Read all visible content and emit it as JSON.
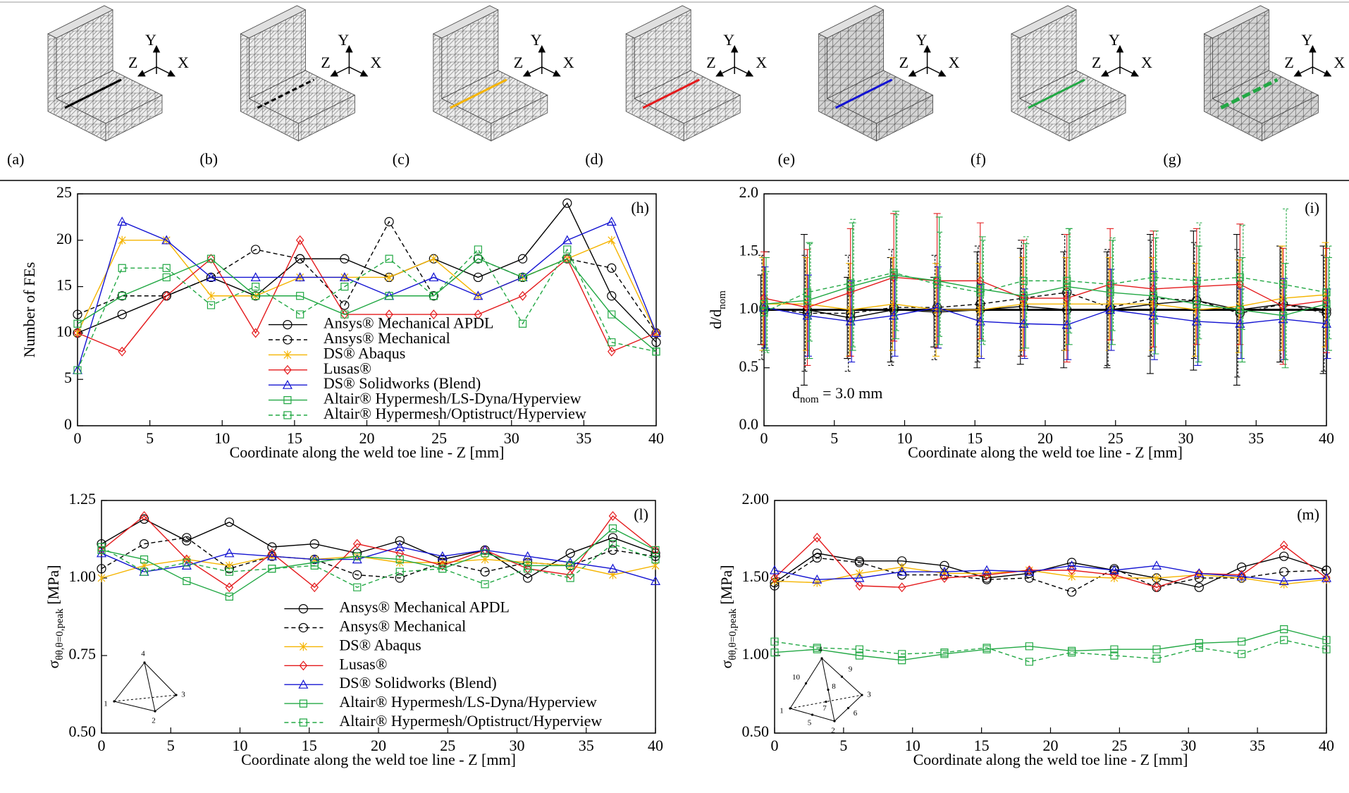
{
  "mesh_figure": {
    "panels": [
      {
        "label": "(a)",
        "line_color": "#000000",
        "dashed": false
      },
      {
        "label": "(b)",
        "line_color": "#000000",
        "dashed": true
      },
      {
        "label": "(c)",
        "line_color": "#f5b400",
        "dashed": false
      },
      {
        "label": "(d)",
        "line_color": "#e41a1c",
        "dashed": false
      },
      {
        "label": "(e)",
        "line_color": "#1414d2",
        "dashed": false
      },
      {
        "label": "(f)",
        "line_color": "#22a844",
        "dashed": false
      },
      {
        "label": "(g)",
        "line_color": "#22a844",
        "dashed": true
      }
    ],
    "axis_labels": [
      "Y",
      "Z",
      "X"
    ]
  },
  "chart_data": [
    {
      "type": "line",
      "panel_label": "(h)",
      "xlabel": "Coordinate along the weld toe line - Z [mm]",
      "ylabel": "Number of FEs",
      "x": [
        0,
        3.08,
        6.15,
        9.23,
        12.31,
        15.38,
        18.46,
        21.54,
        24.62,
        27.69,
        30.77,
        33.85,
        36.92,
        40
      ],
      "xlim": [
        0,
        40
      ],
      "xticks": [
        0,
        5,
        10,
        15,
        20,
        25,
        30,
        35,
        40
      ],
      "ylim": [
        0,
        25
      ],
      "yticks": [
        0,
        5,
        10,
        15,
        20,
        25
      ],
      "legend": "lower center",
      "series": [
        {
          "name": "Ansys® Mechanical APDL",
          "color": "#000000",
          "marker": "circle",
          "dashed": false,
          "values": [
            10,
            12,
            14,
            16,
            14,
            18,
            18,
            16,
            18,
            16,
            18,
            24,
            14,
            9
          ]
        },
        {
          "name": "Ansys® Mechanical",
          "color": "#000000",
          "marker": "circle",
          "dashed": true,
          "values": [
            12,
            14,
            14,
            16,
            19,
            18,
            13,
            22,
            14,
            18,
            16,
            18,
            17,
            10
          ]
        },
        {
          "name": "DS® Abaqus",
          "color": "#f5b400",
          "marker": "x",
          "dashed": false,
          "values": [
            10,
            20,
            20,
            14,
            14,
            16,
            16,
            16,
            18,
            14,
            16,
            18,
            20,
            10
          ]
        },
        {
          "name": "Lusas®",
          "color": "#e41a1c",
          "marker": "diamond",
          "dashed": false,
          "values": [
            10,
            8,
            14,
            18,
            10,
            20,
            12,
            12,
            12,
            12,
            14,
            18,
            8,
            10
          ]
        },
        {
          "name": "DS® Solidworks (Blend)",
          "color": "#1414d2",
          "marker": "triangle",
          "dashed": false,
          "values": [
            6,
            22,
            20,
            16,
            16,
            16,
            16,
            14,
            16,
            14,
            16,
            20,
            22,
            10
          ]
        },
        {
          "name": "Altair® Hypermesh/LS-Dyna/Hyperview",
          "color": "#22a844",
          "marker": "square",
          "dashed": false,
          "values": [
            11,
            14,
            16,
            18,
            14,
            14,
            12,
            14,
            14,
            18,
            16,
            18,
            12,
            8
          ]
        },
        {
          "name": "Altair® Hypermesh/Optistruct/Hyperview",
          "color": "#22a844",
          "marker": "square",
          "dashed": true,
          "values": [
            6,
            17,
            17,
            13,
            15,
            12,
            15,
            18,
            14,
            19,
            11,
            19,
            9,
            8
          ]
        }
      ]
    },
    {
      "type": "errorbar",
      "panel_label": "(i)",
      "xlabel": "Coordinate along the weld toe line - Z [mm]",
      "ylabel": {
        "main": "d/d",
        "sub": "nom"
      },
      "annotation": {
        "main": "d",
        "sub": "nom",
        "rest": " = 3.0 mm"
      },
      "reference_line": 1,
      "x": [
        0,
        3.08,
        6.15,
        9.23,
        12.31,
        15.38,
        18.46,
        21.54,
        24.62,
        27.69,
        30.77,
        33.85,
        36.92,
        40
      ],
      "xlim": [
        0,
        40
      ],
      "xticks": [
        0,
        5,
        10,
        15,
        20,
        25,
        30,
        35,
        40
      ],
      "ylim": [
        0,
        2
      ],
      "yticks": [
        {
          "value": 0,
          "label": "0.0"
        },
        0.5,
        {
          "value": 1,
          "label": "1.0"
        },
        1.5,
        {
          "value": 2,
          "label": "2.0"
        }
      ],
      "series": [
        {
          "color": "#000000",
          "marker": "circle",
          "dashed": false,
          "values": [
            1.0,
            1.0,
            0.93,
            1.0,
            0.98,
            1.0,
            1.03,
            1.0,
            1.0,
            1.05,
            1.08,
            1.0,
            1.05,
            1.0
          ],
          "errors": [
            0.3,
            0.65,
            0.35,
            0.45,
            0.3,
            0.5,
            0.5,
            0.5,
            0.5,
            0.6,
            0.6,
            0.65,
            0.5,
            0.55
          ]
        },
        {
          "color": "#000000",
          "marker": "circle",
          "dashed": true,
          "values": [
            1.02,
            0.97,
            0.97,
            1.02,
            1.02,
            1.05,
            1.1,
            1.15,
            1.02,
            1.1,
            1.08,
            0.97,
            1.05,
            0.97
          ],
          "errors": [
            0.45,
            0.5,
            0.5,
            0.5,
            0.45,
            0.5,
            0.5,
            0.5,
            0.5,
            0.5,
            0.5,
            0.55,
            0.5,
            0.5
          ]
        },
        {
          "color": "#f5b400",
          "marker": "x",
          "dashed": false,
          "values": [
            1.05,
            1.05,
            1.0,
            1.05,
            1.0,
            1.0,
            1.05,
            1.05,
            1.05,
            1.05,
            1.0,
            1.03,
            1.1,
            1.13
          ],
          "errors": [
            0.4,
            0.4,
            0.4,
            0.4,
            0.4,
            0.4,
            0.4,
            0.4,
            0.4,
            0.4,
            0.4,
            0.4,
            0.45,
            0.45
          ]
        },
        {
          "color": "#e41a1c",
          "marker": "diamond",
          "dashed": false,
          "values": [
            1.1,
            1.02,
            1.15,
            1.28,
            1.25,
            1.25,
            1.1,
            1.1,
            1.22,
            1.18,
            1.2,
            1.22,
            1.03,
            1.08
          ],
          "errors": [
            0.4,
            0.5,
            0.55,
            0.55,
            0.58,
            0.5,
            0.5,
            0.55,
            0.48,
            0.5,
            0.5,
            0.52,
            0.5,
            0.45
          ]
        },
        {
          "color": "#1414d2",
          "marker": "triangle",
          "dashed": false,
          "values": [
            1.02,
            0.95,
            0.9,
            0.95,
            1.02,
            0.9,
            0.88,
            0.87,
            1.0,
            0.95,
            0.9,
            0.88,
            0.92,
            0.88
          ],
          "errors": [
            0.35,
            0.35,
            0.35,
            0.35,
            0.35,
            0.32,
            0.3,
            0.3,
            0.35,
            0.38,
            0.38,
            0.3,
            0.35,
            0.3
          ]
        },
        {
          "color": "#22a844",
          "marker": "square",
          "dashed": false,
          "values": [
            1.05,
            1.08,
            1.2,
            1.3,
            1.25,
            1.18,
            1.12,
            1.2,
            1.15,
            1.12,
            1.05,
            1.0,
            0.95,
            1.05
          ],
          "errors": [
            0.4,
            0.5,
            0.55,
            0.55,
            0.55,
            0.45,
            0.45,
            0.5,
            0.45,
            0.5,
            0.5,
            0.45,
            0.45,
            0.4
          ]
        },
        {
          "color": "#22a844",
          "marker": "square",
          "dashed": true,
          "values": [
            0.98,
            1.15,
            1.23,
            1.32,
            1.22,
            1.15,
            1.25,
            1.25,
            1.22,
            1.28,
            1.25,
            1.28,
            1.22,
            1.15
          ],
          "errors": [
            0.35,
            0.42,
            0.55,
            0.5,
            0.45,
            0.45,
            0.38,
            0.45,
            0.4,
            0.4,
            0.5,
            0.45,
            0.65,
            0.4
          ]
        }
      ]
    },
    {
      "type": "line",
      "panel_label": "(l)",
      "xlabel": "Coordinate along the weld toe line - Z [mm]",
      "ylabel": {
        "main": "σ",
        "sub": "θθ,θ=0,peak",
        "rest": " [MPa]"
      },
      "inset_labels": [
        "1",
        "2",
        "3",
        "4"
      ],
      "x": [
        0,
        3.08,
        6.15,
        9.23,
        12.31,
        15.38,
        18.46,
        21.54,
        24.62,
        27.69,
        30.77,
        33.85,
        36.92,
        40
      ],
      "xlim": [
        0,
        40
      ],
      "xticks": [
        0,
        5,
        10,
        15,
        20,
        25,
        30,
        35,
        40
      ],
      "ylim": [
        0.5,
        1.25
      ],
      "yticks": [
        {
          "value": 0.5,
          "label": "0.50"
        },
        0.75,
        {
          "value": 1,
          "label": "1.00"
        },
        1.25
      ],
      "legend": "lower center",
      "series": [
        {
          "name": "Ansys® Mechanical APDL",
          "color": "#000000",
          "marker": "circle",
          "dashed": false,
          "values": [
            1.11,
            1.19,
            1.12,
            1.18,
            1.1,
            1.11,
            1.08,
            1.12,
            1.06,
            1.09,
            1.0,
            1.08,
            1.13,
            1.08
          ]
        },
        {
          "name": "Ansys® Mechanical",
          "color": "#000000",
          "marker": "circle",
          "dashed": true,
          "values": [
            1.03,
            1.11,
            1.13,
            1.03,
            1.07,
            1.06,
            1.01,
            1.0,
            1.05,
            1.02,
            1.05,
            1.04,
            1.09,
            1.07
          ]
        },
        {
          "name": "DS® Abaqus",
          "color": "#f5b400",
          "marker": "x",
          "dashed": false,
          "values": [
            1.0,
            1.04,
            1.06,
            1.04,
            1.07,
            1.06,
            1.07,
            1.05,
            1.05,
            1.06,
            1.05,
            1.04,
            1.01,
            1.04
          ]
        },
        {
          "name": "Lusas®",
          "color": "#e41a1c",
          "marker": "diamond",
          "dashed": false,
          "values": [
            1.09,
            1.2,
            1.06,
            0.97,
            1.08,
            0.97,
            1.11,
            1.08,
            1.04,
            1.09,
            1.03,
            1.01,
            1.2,
            1.09
          ]
        },
        {
          "name": "DS® Solidworks (Blend)",
          "color": "#1414d2",
          "marker": "triangle",
          "dashed": false,
          "values": [
            1.08,
            1.02,
            1.04,
            1.08,
            1.07,
            1.06,
            1.06,
            1.1,
            1.07,
            1.09,
            1.07,
            1.05,
            1.03,
            0.99
          ]
        },
        {
          "name": "Altair® Hypermesh/LS-Dyna/Hyperview",
          "color": "#22a844",
          "marker": "square",
          "dashed": false,
          "values": [
            1.09,
            1.06,
            0.99,
            0.94,
            1.03,
            1.05,
            1.07,
            1.06,
            1.03,
            1.08,
            1.04,
            1.04,
            1.16,
            1.09
          ]
        },
        {
          "name": "Altair® Hypermesh/Optistruct/Hyperview",
          "color": "#22a844",
          "marker": "square",
          "dashed": true,
          "values": [
            1.1,
            1.02,
            1.05,
            1.02,
            1.03,
            1.04,
            0.97,
            1.02,
            1.03,
            0.98,
            1.03,
            1.0,
            1.11,
            1.06
          ]
        }
      ]
    },
    {
      "type": "line",
      "panel_label": "(m)",
      "xlabel": "Coordinate along the weld toe line - Z [mm]",
      "ylabel": {
        "main": "σ",
        "sub": "θθ,θ=0,peak",
        "rest": " [MPa]"
      },
      "inset_labels": [
        "1",
        "2",
        "3",
        "4",
        "5",
        "6",
        "7",
        "8",
        "9",
        "10"
      ],
      "x": [
        0,
        3.08,
        6.15,
        9.23,
        12.31,
        15.38,
        18.46,
        21.54,
        24.62,
        27.69,
        30.77,
        33.85,
        36.92,
        40
      ],
      "xlim": [
        0,
        40
      ],
      "xticks": [
        0,
        5,
        10,
        15,
        20,
        25,
        30,
        35,
        40
      ],
      "ylim": [
        0.5,
        2
      ],
      "yticks": [
        {
          "value": 0.5,
          "label": "0.50"
        },
        {
          "value": 1,
          "label": "1.00"
        },
        {
          "value": 1.5,
          "label": "1.50"
        },
        {
          "value": 2,
          "label": "2.00"
        }
      ],
      "series": [
        {
          "color": "#000000",
          "marker": "circle",
          "dashed": false,
          "values": [
            1.47,
            1.66,
            1.61,
            1.61,
            1.58,
            1.5,
            1.53,
            1.6,
            1.55,
            1.5,
            1.44,
            1.57,
            1.64,
            1.55
          ]
        },
        {
          "color": "#000000",
          "marker": "circle",
          "dashed": true,
          "values": [
            1.45,
            1.63,
            1.6,
            1.52,
            1.52,
            1.49,
            1.5,
            1.41,
            1.56,
            1.44,
            1.5,
            1.5,
            1.54,
            1.55
          ]
        },
        {
          "color": "#f5b400",
          "marker": "x",
          "dashed": false,
          "values": [
            1.48,
            1.47,
            1.53,
            1.57,
            1.53,
            1.53,
            1.55,
            1.51,
            1.5,
            1.5,
            1.52,
            1.5,
            1.46,
            1.49
          ]
        },
        {
          "color": "#e41a1c",
          "marker": "diamond",
          "dashed": false,
          "values": [
            1.5,
            1.76,
            1.45,
            1.44,
            1.5,
            1.52,
            1.55,
            1.55,
            1.52,
            1.44,
            1.53,
            1.52,
            1.71,
            1.5
          ]
        },
        {
          "color": "#1414d2",
          "marker": "triangle",
          "dashed": false,
          "values": [
            1.55,
            1.49,
            1.5,
            1.54,
            1.54,
            1.55,
            1.54,
            1.58,
            1.55,
            1.58,
            1.53,
            1.51,
            1.48,
            1.5
          ]
        },
        {
          "color": "#22a844",
          "marker": "square",
          "dashed": false,
          "values": [
            1.02,
            1.04,
            1.0,
            0.97,
            1.01,
            1.04,
            1.06,
            1.03,
            1.04,
            1.04,
            1.08,
            1.09,
            1.17,
            1.1
          ]
        },
        {
          "color": "#22a844",
          "marker": "square",
          "dashed": true,
          "values": [
            1.09,
            1.05,
            1.04,
            1.01,
            1.02,
            1.05,
            0.96,
            1.02,
            1.0,
            0.98,
            1.05,
            1.01,
            1.1,
            1.04
          ]
        }
      ]
    }
  ]
}
